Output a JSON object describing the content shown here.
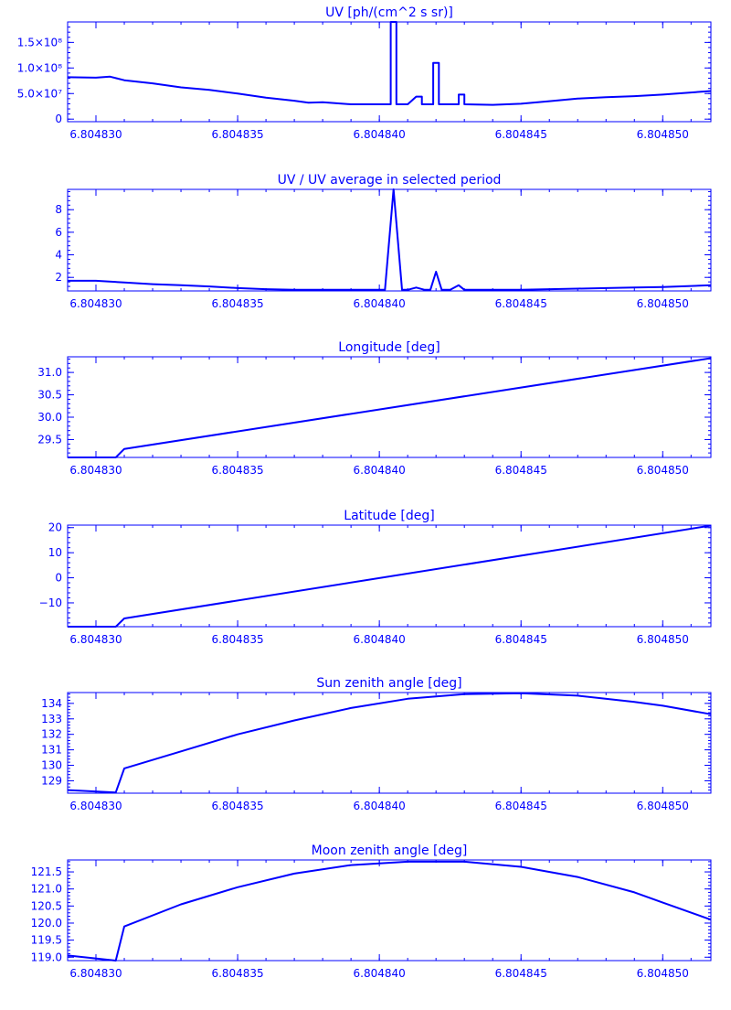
{
  "chart_data": [
    {
      "type": "line",
      "title": "UV [ph/(cm^2 s sr)]",
      "xlim": [
        6.804829,
        6.8048517
      ],
      "ylim": [
        -5000000,
        190000000
      ],
      "xticks": [
        6.80483,
        6.804835,
        6.80484,
        6.804845,
        6.80485
      ],
      "xtick_labels": [
        "6.804830",
        "6.804835",
        "6.804840",
        "6.804845",
        "6.804850"
      ],
      "yticks": [
        0,
        50000000,
        100000000,
        150000000
      ],
      "ytick_labels": [
        "0",
        "5.0×10⁷",
        "1.0×10⁸",
        "1.5×10⁸"
      ],
      "grid": false,
      "series": [
        {
          "x": [
            6.804829,
            6.80483,
            6.8048305,
            6.804831,
            6.804832,
            6.804833,
            6.804834,
            6.804835,
            6.804836,
            6.804837,
            6.8048375,
            6.804838,
            6.804839,
            6.8048404,
            6.8048404,
            6.8048406,
            6.8048406,
            6.804841,
            6.8048413,
            6.8048415,
            6.8048415,
            6.8048419,
            6.8048419,
            6.8048421,
            6.8048421,
            6.8048428,
            6.8048428,
            6.804843,
            6.804843,
            6.804844,
            6.804845,
            6.804846,
            6.804847,
            6.804848,
            6.804849,
            6.80485,
            6.8048517
          ],
          "y": [
            82000000,
            81000000,
            83000000,
            76000000,
            70000000,
            62000000,
            57000000,
            50000000,
            42000000,
            36000000,
            32000000,
            33000000,
            29000000,
            29000000,
            190000000,
            190000000,
            29000000,
            29000000,
            44000000,
            44000000,
            29000000,
            29000000,
            110000000,
            110000000,
            29000000,
            29000000,
            48000000,
            48000000,
            29000000,
            28000000,
            30000000,
            35000000,
            40000000,
            43000000,
            45000000,
            48000000,
            55000000
          ]
        }
      ]
    },
    {
      "type": "line",
      "title": "UV / UV average in selected period",
      "xlim": [
        6.804829,
        6.8048517
      ],
      "ylim": [
        0.8,
        9.8
      ],
      "xticks": [
        6.80483,
        6.804835,
        6.80484,
        6.804845,
        6.80485
      ],
      "xtick_labels": [
        "6.804830",
        "6.804835",
        "6.804840",
        "6.804845",
        "6.804850"
      ],
      "yticks": [
        2,
        4,
        6,
        8
      ],
      "ytick_labels": [
        "2",
        "4",
        "6",
        "8"
      ],
      "grid": false,
      "series": [
        {
          "x": [
            6.804829,
            6.80483,
            6.804831,
            6.804832,
            6.804833,
            6.804834,
            6.804835,
            6.804836,
            6.804837,
            6.804838,
            6.804839,
            6.8048402,
            6.8048405,
            6.8048408,
            6.804841,
            6.8048413,
            6.8048416,
            6.8048418,
            6.804842,
            6.8048422,
            6.8048425,
            6.8048428,
            6.804843,
            6.804844,
            6.804845,
            6.804846,
            6.804847,
            6.804848,
            6.804849,
            6.80485,
            6.8048517
          ],
          "y": [
            1.7,
            1.7,
            1.55,
            1.4,
            1.3,
            1.2,
            1.05,
            0.95,
            0.9,
            0.9,
            0.9,
            0.9,
            9.8,
            0.9,
            0.9,
            1.1,
            0.9,
            0.9,
            2.5,
            0.9,
            0.9,
            1.3,
            0.9,
            0.9,
            0.9,
            0.95,
            1.0,
            1.05,
            1.1,
            1.15,
            1.3
          ]
        }
      ]
    },
    {
      "type": "line",
      "title": "Longitude [deg]",
      "xlim": [
        6.804829,
        6.8048517
      ],
      "ylim": [
        29.1,
        31.35
      ],
      "xticks": [
        6.80483,
        6.804835,
        6.80484,
        6.804845,
        6.80485
      ],
      "xtick_labels": [
        "6.804830",
        "6.804835",
        "6.804840",
        "6.804845",
        "6.804850"
      ],
      "yticks": [
        29.5,
        30.0,
        30.5,
        31.0
      ],
      "ytick_labels": [
        "29.5",
        "30.0",
        "30.5",
        "31.0"
      ],
      "grid": false,
      "series": [
        {
          "x": [
            6.804829,
            6.8048307,
            6.804831,
            6.8048517
          ],
          "y": [
            29.1,
            29.1,
            29.29,
            31.32
          ]
        }
      ]
    },
    {
      "type": "line",
      "title": "Latitude [deg]",
      "xlim": [
        6.804829,
        6.8048517
      ],
      "ylim": [
        -19.5,
        21
      ],
      "xticks": [
        6.80483,
        6.804835,
        6.80484,
        6.804845,
        6.80485
      ],
      "xtick_labels": [
        "6.804830",
        "6.804835",
        "6.804840",
        "6.804845",
        "6.804850"
      ],
      "yticks": [
        -10,
        0,
        10,
        20
      ],
      "ytick_labels": [
        "−10",
        "0",
        "10",
        "20"
      ],
      "grid": false,
      "series": [
        {
          "x": [
            6.804829,
            6.8048307,
            6.804831,
            6.8048517
          ],
          "y": [
            -19.5,
            -19.5,
            -16.2,
            20.8
          ]
        }
      ]
    },
    {
      "type": "line",
      "title": "Sun zenith angle [deg]",
      "xlim": [
        6.804829,
        6.8048517
      ],
      "ylim": [
        128.2,
        134.7
      ],
      "xticks": [
        6.80483,
        6.804835,
        6.80484,
        6.804845,
        6.80485
      ],
      "xtick_labels": [
        "6.804830",
        "6.804835",
        "6.804840",
        "6.804845",
        "6.804850"
      ],
      "yticks": [
        129,
        130,
        131,
        132,
        133,
        134
      ],
      "ytick_labels": [
        "129",
        "130",
        "131",
        "132",
        "133",
        "134"
      ],
      "grid": false,
      "series": [
        {
          "x": [
            6.804829,
            6.8048307,
            6.804831,
            6.804833,
            6.804835,
            6.804837,
            6.804839,
            6.804841,
            6.804843,
            6.804845,
            6.804847,
            6.804849,
            6.80485,
            6.8048517
          ],
          "y": [
            128.4,
            128.25,
            129.8,
            130.9,
            132.0,
            132.9,
            133.7,
            134.3,
            134.6,
            134.65,
            134.5,
            134.1,
            133.85,
            133.3
          ]
        }
      ]
    },
    {
      "type": "line",
      "title": "Moon zenith angle [deg]",
      "xlim": [
        6.804829,
        6.8048517
      ],
      "ylim": [
        118.9,
        121.85
      ],
      "xticks": [
        6.80483,
        6.804835,
        6.80484,
        6.804845,
        6.80485
      ],
      "xtick_labels": [
        "6.804830",
        "6.804835",
        "6.804840",
        "6.804845",
        "6.804850"
      ],
      "yticks": [
        119.0,
        119.5,
        120.0,
        120.5,
        121.0,
        121.5
      ],
      "ytick_labels": [
        "119.0",
        "119.5",
        "120.0",
        "120.5",
        "121.0",
        "121.5"
      ],
      "grid": false,
      "series": [
        {
          "x": [
            6.804829,
            6.8048307,
            6.804831,
            6.804833,
            6.804835,
            6.804837,
            6.804839,
            6.804841,
            6.804843,
            6.804845,
            6.804847,
            6.804849,
            6.80485,
            6.8048517
          ],
          "y": [
            119.05,
            118.9,
            119.9,
            120.55,
            121.05,
            121.45,
            121.7,
            121.8,
            121.8,
            121.65,
            121.35,
            120.9,
            120.6,
            120.1
          ]
        }
      ]
    }
  ],
  "colors": {
    "plot": "#0000FF",
    "background": "#FFFFFF"
  }
}
